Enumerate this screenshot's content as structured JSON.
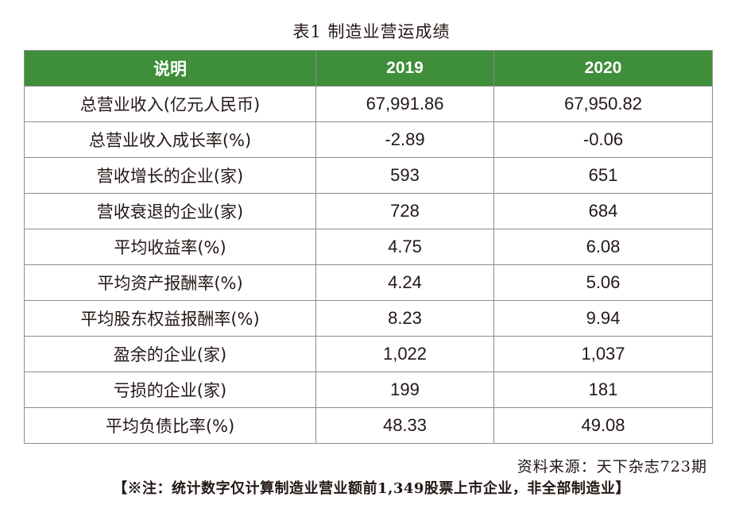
{
  "title": "表1  制造业营运成绩",
  "table": {
    "headers": [
      "说明",
      "2019",
      "2020"
    ],
    "rows": [
      {
        "label": "总营业收入(亿元人民币)",
        "v2019": "67,991.86",
        "v2020": "67,950.82"
      },
      {
        "label": "总营业收入成长率(%)",
        "v2019": "-2.89",
        "v2020": "-0.06"
      },
      {
        "label": "营收增长的企业(家)",
        "v2019": "593",
        "v2020": "651"
      },
      {
        "label": "营收衰退的企业(家)",
        "v2019": "728",
        "v2020": "684"
      },
      {
        "label": "平均收益率(%)",
        "v2019": "4.75",
        "v2020": "6.08"
      },
      {
        "label": "平均资产报酬率(%)",
        "v2019": "4.24",
        "v2020": "5.06"
      },
      {
        "label": "平均股东权益报酬率(%)",
        "v2019": "8.23",
        "v2020": "9.94"
      },
      {
        "label": "盈余的企业(家)",
        "v2019": "1,022",
        "v2020": "1,037"
      },
      {
        "label": "亏损的企业(家)",
        "v2019": "199",
        "v2020": "181"
      },
      {
        "label": "平均负债比率(%)",
        "v2019": "48.33",
        "v2020": "49.08"
      }
    ]
  },
  "colors": {
    "header_bg": "#3f8e3a",
    "header_text": "#ffffff",
    "border": "#8c8c8c"
  },
  "source": "资料来源：天下杂志723期",
  "note": "【※注：统计数字仅计算制造业营业额前1,349股票上市企业，非全部制造业】"
}
